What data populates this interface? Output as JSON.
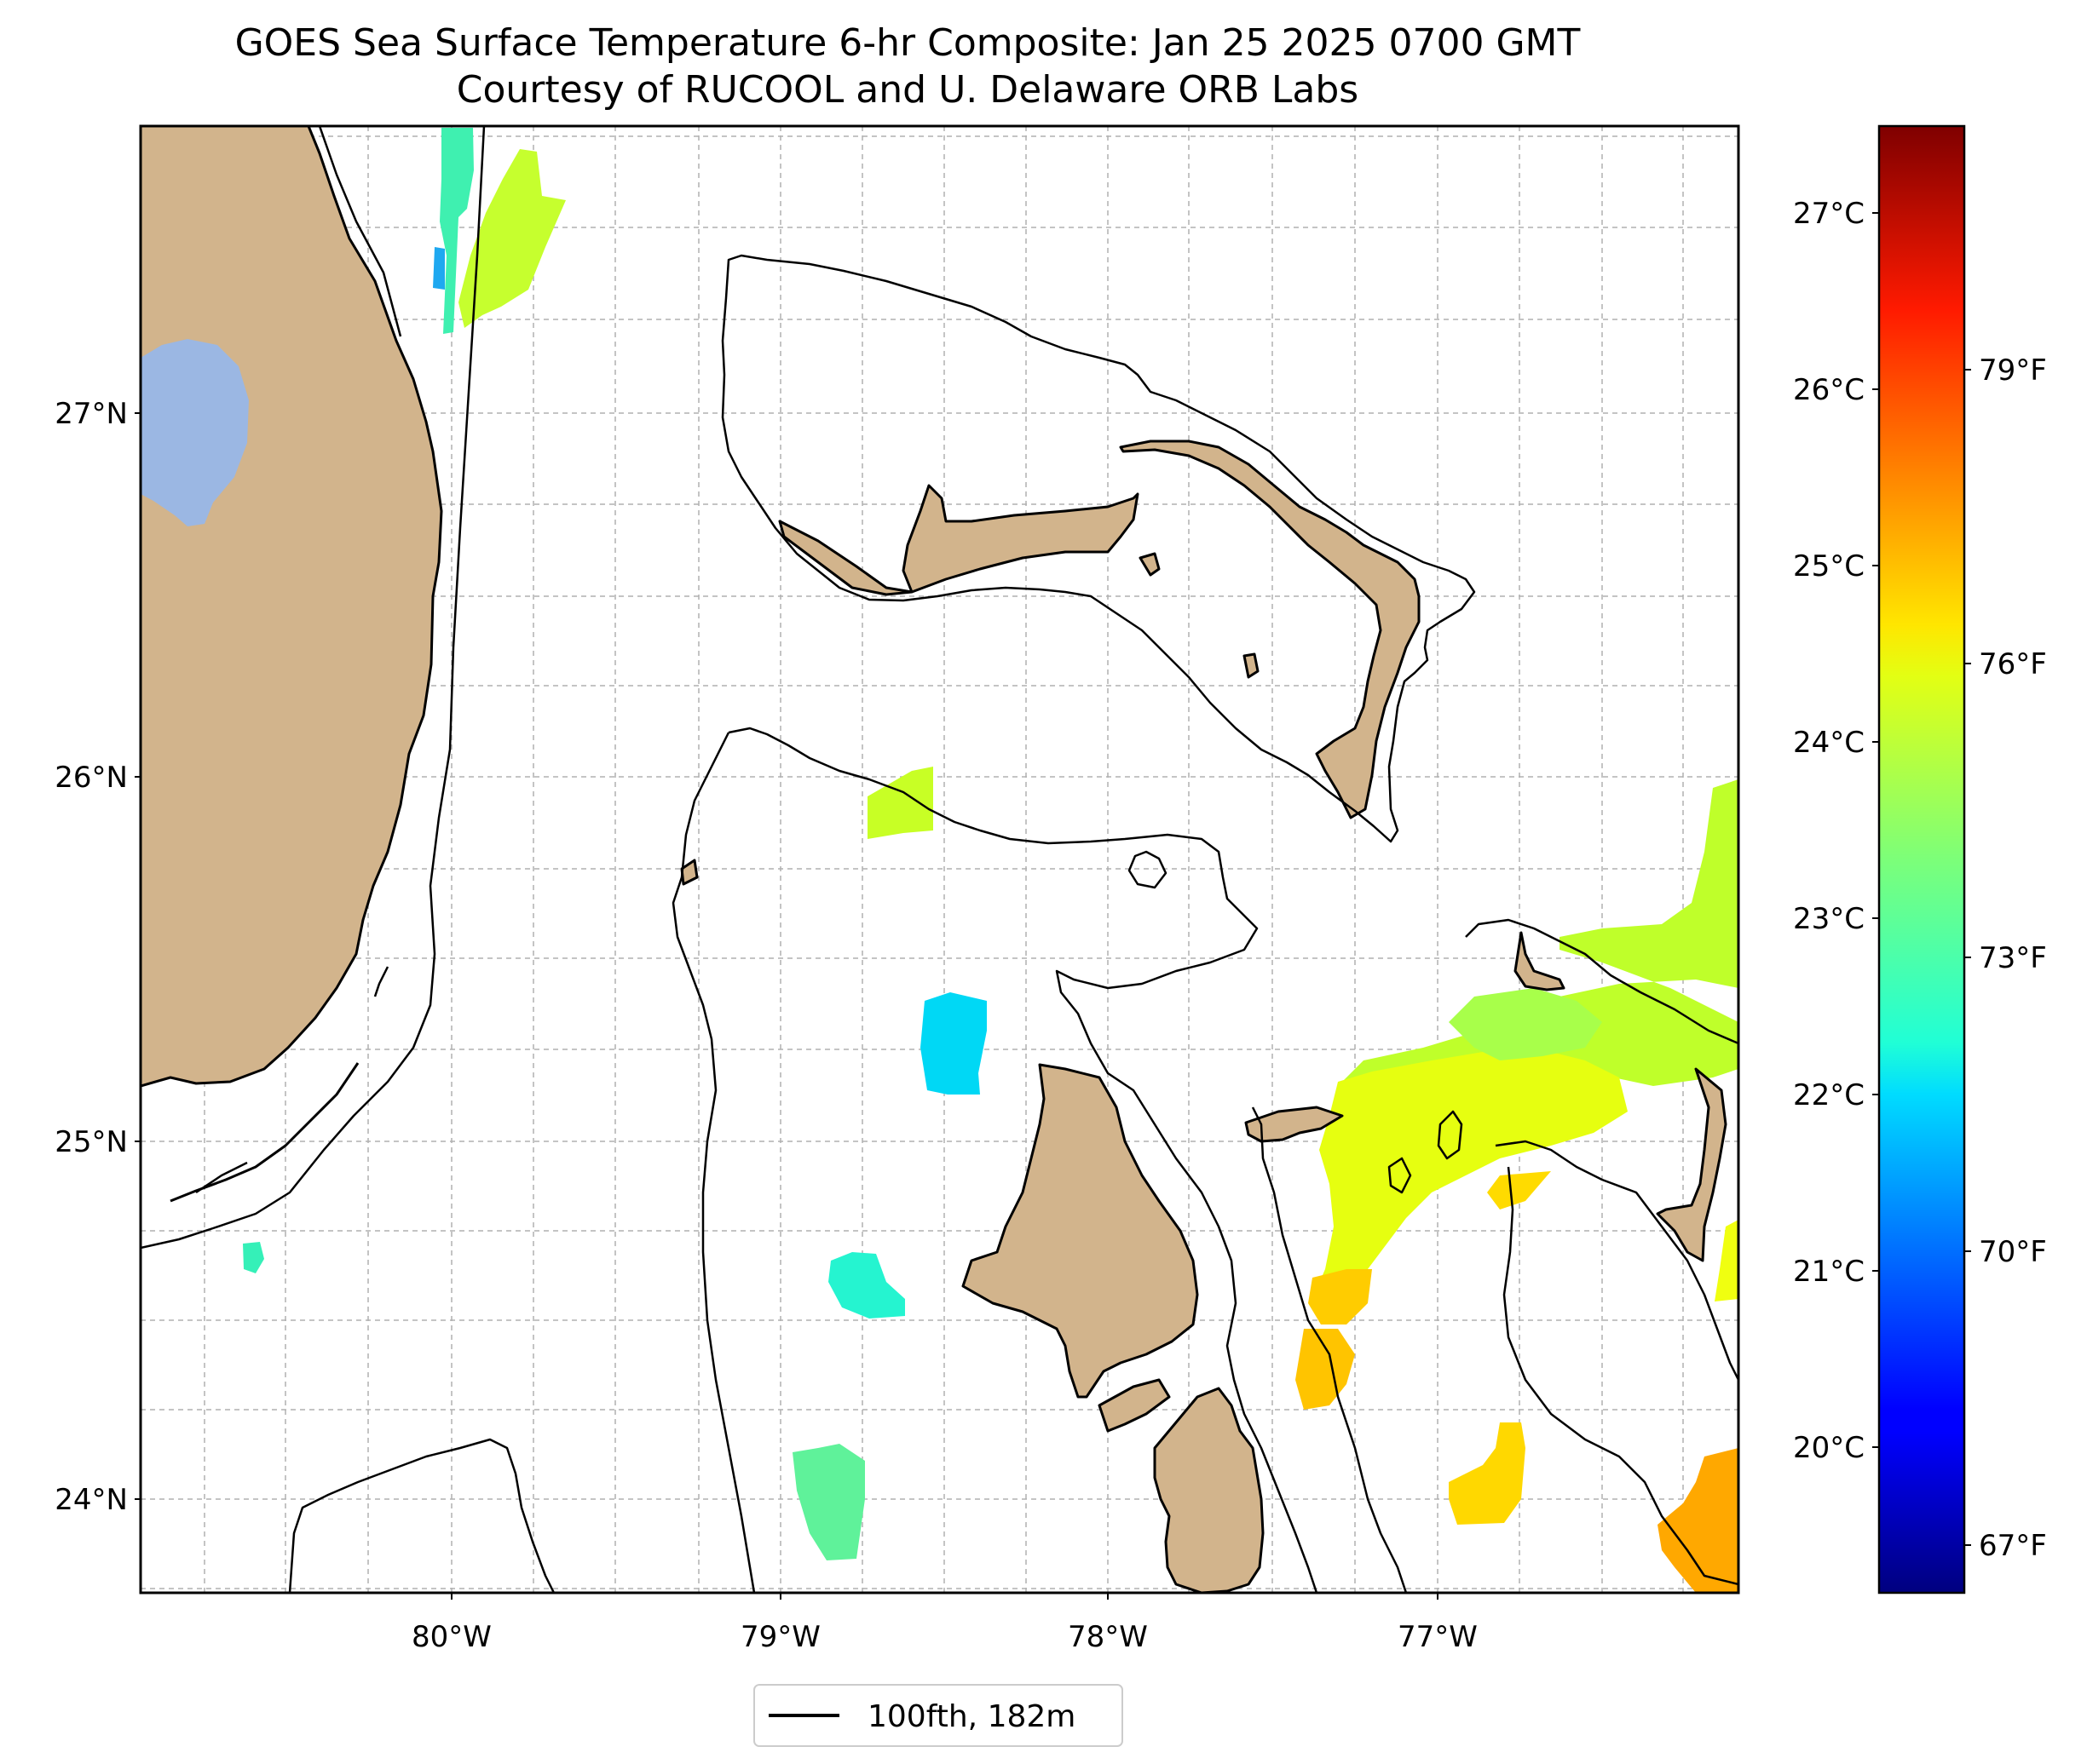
{
  "title": {
    "line1": "GOES Sea Surface Temperature 6-hr Composite: Jan 25 2025 0700 GMT",
    "line2": "Courtesy of RUCOOL and U. Delaware ORB Labs"
  },
  "map": {
    "lat_ticks": [
      "27°N",
      "26°N",
      "25°N",
      "24°N"
    ],
    "lon_ticks": [
      "80°W",
      "79°W",
      "78°W",
      "77°W"
    ],
    "lon_range": [
      -80.96,
      -76.12
    ],
    "lat_range": [
      23.75,
      27.78
    ],
    "land_color": "#d2b48c",
    "lake_color": "#9bb7e3",
    "contour_color": "#000000",
    "grid": "dashed"
  },
  "legend": {
    "label": "100fth, 182m",
    "placement": "bottom-center"
  },
  "colorbar": {
    "colormap": "jet",
    "celsius_range": [
      19.2,
      27.5
    ],
    "celsius_ticks": [
      "27°C",
      "26°C",
      "25°C",
      "24°C",
      "23°C",
      "22°C",
      "21°C",
      "20°C"
    ],
    "fahrenheit_ticks": [
      "79°F",
      "76°F",
      "73°F",
      "70°F",
      "67°F"
    ]
  }
}
